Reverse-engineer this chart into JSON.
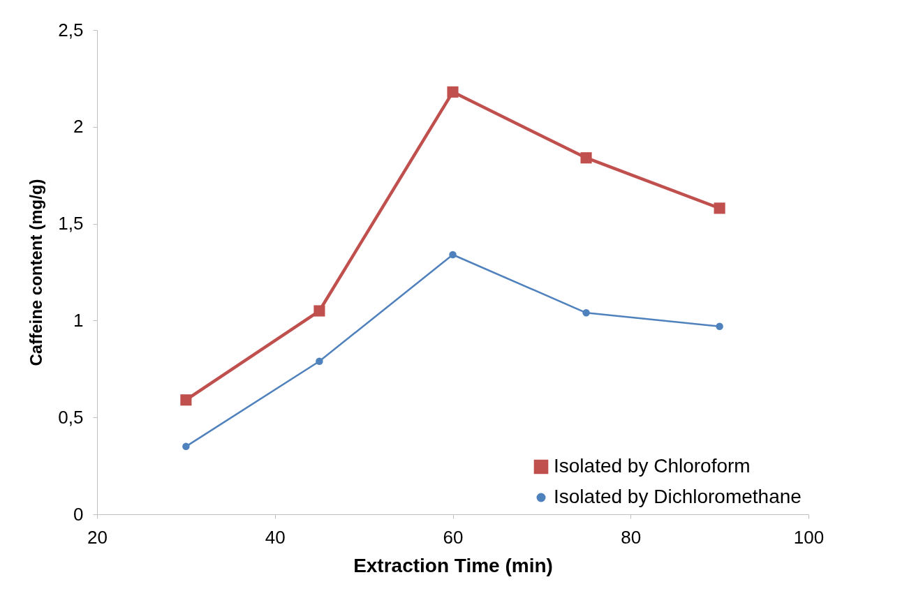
{
  "chart_data": {
    "type": "line",
    "xlabel": "Extraction Time (min)",
    "ylabel": "Caffeine content  (mg/g)",
    "x": [
      30,
      45,
      60,
      75,
      90
    ],
    "series": [
      {
        "name": "Isolated by Chloroform",
        "color": "#c0504d",
        "marker": "square",
        "values": [
          0.59,
          1.05,
          2.18,
          1.84,
          1.58
        ]
      },
      {
        "name": "Isolated by Dichloromethane",
        "color": "#4f81bd",
        "marker": "circle",
        "values": [
          0.35,
          0.79,
          1.34,
          1.04,
          0.97
        ]
      }
    ],
    "xlim": [
      20,
      100
    ],
    "xticks": [
      20,
      40,
      60,
      80,
      100
    ],
    "ylim": [
      0,
      2.5
    ],
    "yticks": [
      0,
      {
        "value": 0.5,
        "label": "0,5"
      },
      1,
      {
        "value": 1.5,
        "label": "1,5"
      },
      2,
      {
        "value": 2.5,
        "label": "2,5"
      }
    ],
    "grid": false,
    "legend": "bottom right"
  }
}
